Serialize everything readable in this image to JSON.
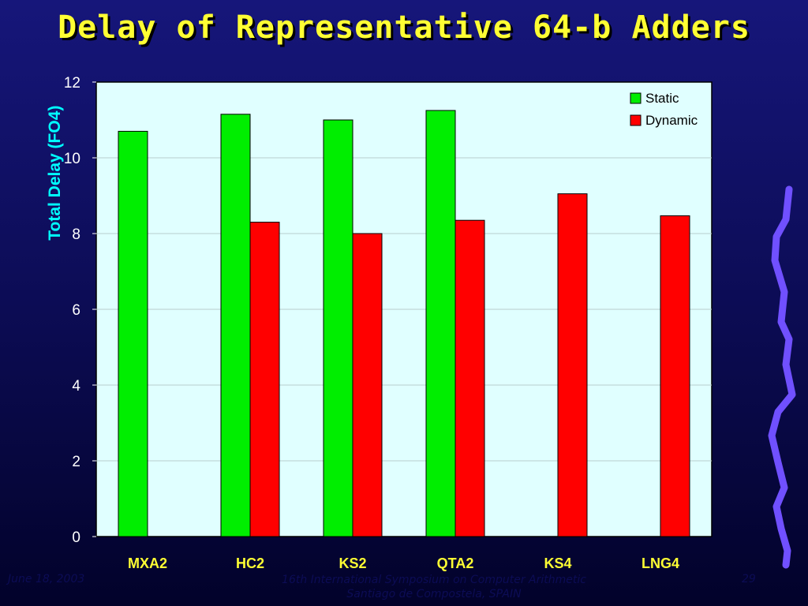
{
  "slide": {
    "title": "Delay of Representative 64-b Adders"
  },
  "footer": {
    "date": "June 18, 2003",
    "conference_line1": "16th International Symposium on Computer Arithmetic",
    "conference_line2": "Santiago de Compostela, SPAIN",
    "page_number": "29"
  },
  "colors": {
    "static": "#00ee00",
    "dynamic": "#ff0000",
    "plot_background": "#e0ffff",
    "ylabel": "#00ffff",
    "xtick_labels": "#ffff33",
    "ytick_labels": "#ffffff",
    "decoration": "#7050ff"
  },
  "chart_data": {
    "type": "bar",
    "title": "",
    "xlabel": "",
    "ylabel": "Total Delay (FO4)",
    "ylim": [
      0,
      12
    ],
    "yticks": [
      0,
      2,
      4,
      6,
      8,
      10,
      12
    ],
    "grid": true,
    "legend_position": "top-right",
    "categories": [
      "MXA2",
      "HC2",
      "KS2",
      "QTA2",
      "KS4",
      "LNG4"
    ],
    "series": [
      {
        "name": "Static",
        "values": [
          10.7,
          11.15,
          11.0,
          11.25,
          null,
          null
        ]
      },
      {
        "name": "Dynamic",
        "values": [
          null,
          8.3,
          8.0,
          8.35,
          9.05,
          8.47
        ]
      }
    ]
  }
}
